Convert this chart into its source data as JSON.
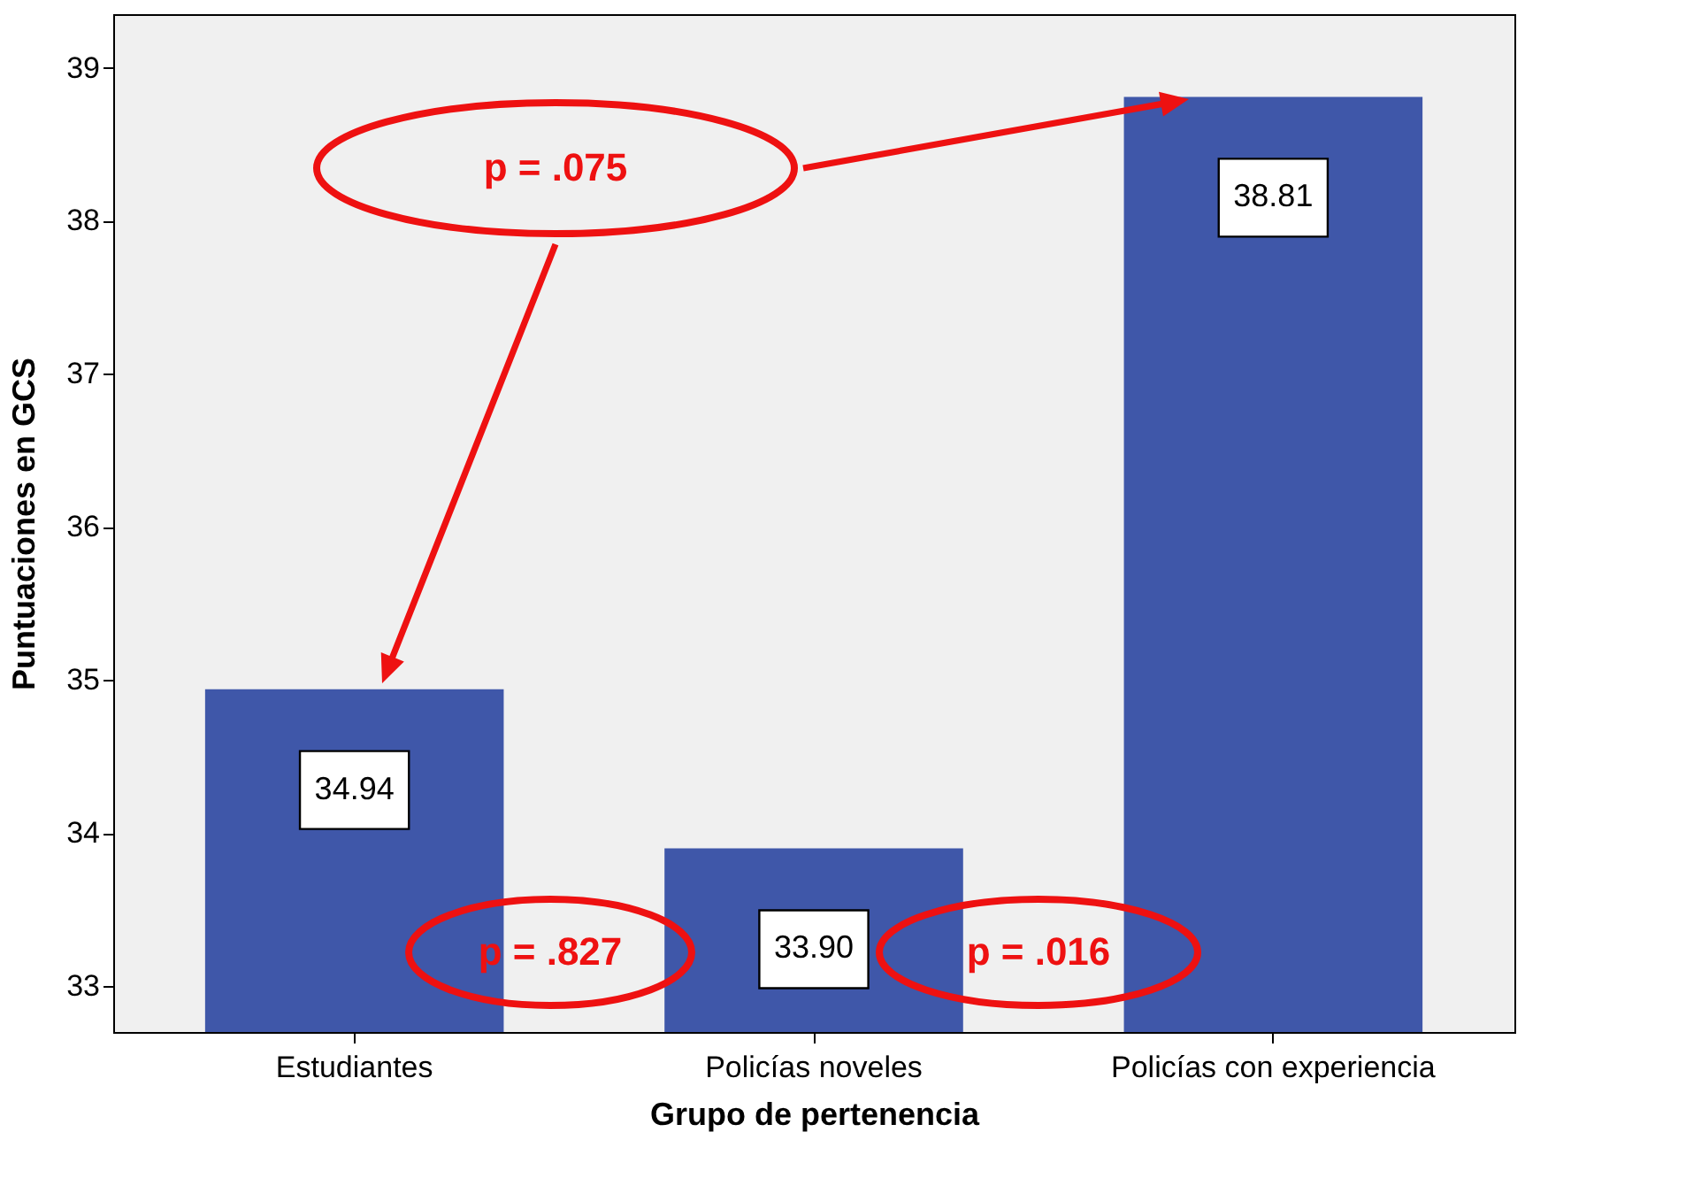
{
  "chart_data": {
    "type": "bar",
    "xlabel": "Grupo de pertenencia",
    "ylabel": "Puntuaciones en GCS",
    "categories": [
      "Estudiantes",
      "Policías noveles",
      "Policías con experiencia"
    ],
    "values": [
      34.94,
      33.9,
      38.81
    ],
    "color": "#3f57a9",
    "value_labels": [
      "34.94",
      "33.90",
      "38.81"
    ],
    "ylim": [
      32.7,
      39.35
    ],
    "yticks": [
      {
        "value": 33,
        "label": "33"
      },
      {
        "value": 34,
        "label": "34"
      },
      {
        "value": 35,
        "label": "35"
      },
      {
        "value": 36,
        "label": "36"
      },
      {
        "value": 37,
        "label": "37"
      },
      {
        "value": 38,
        "label": "38"
      },
      {
        "value": 39,
        "label": "39"
      }
    ],
    "grid": false,
    "annotations": [
      "p = .075",
      "p = .827",
      "p = .016"
    ]
  }
}
